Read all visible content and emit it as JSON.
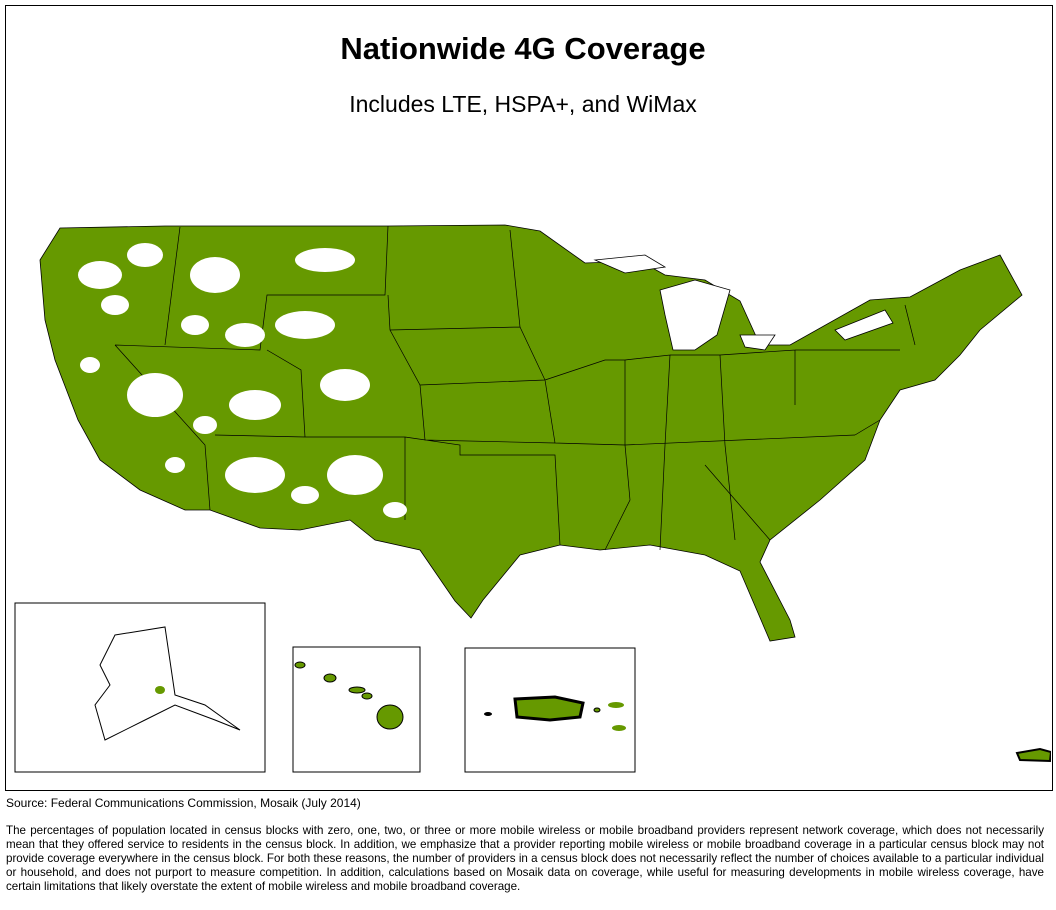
{
  "header": {
    "title": "Nationwide 4G Coverage",
    "subtitle": "Includes LTE, HSPA+, and WiMax"
  },
  "footer": {
    "source": "Source: Federal Communications Commission, Mosaik (July 2014)",
    "note": "The percentages of population located in census blocks with zero, one, two, or three or more mobile wireless or mobile broadband providers represent network coverage, which does not necessarily mean that they offered service to residents in the census block. In addition, we emphasize that a provider reporting mobile wireless or mobile broadband coverage in a particular census block may not provide coverage everywhere in the census block. For both these reasons, the number of providers in a census block does not necessarily reflect the number of choices available to a particular individual or household, and does not purport to measure competition. In addition, calculations based on Mosaik data on coverage, while useful for measuring developments in mobile wireless coverage, have certain limitations that likely overstate the extent of mobile wireless and mobile broadband coverage."
  }
}
